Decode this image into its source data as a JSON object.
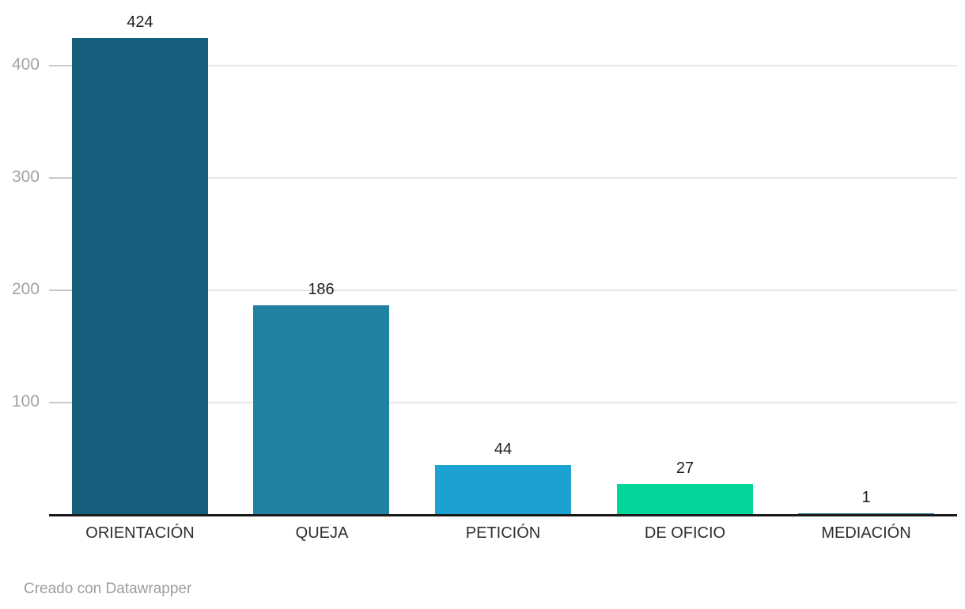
{
  "chart_data": {
    "type": "bar",
    "categories": [
      "ORIENTACIÓN",
      "QUEJA",
      "PETICIÓN",
      "DE OFICIO",
      "MEDIACIÓN"
    ],
    "values": [
      424,
      186,
      44,
      27,
      1
    ],
    "value_labels": [
      "424",
      "186",
      "44",
      "27",
      "1"
    ],
    "bar_colors": [
      "#16607E",
      "#2081A1",
      "#1BA2D1",
      "#04D69B",
      "#2081A1"
    ],
    "title": "",
    "xlabel": "",
    "ylabel": "",
    "ylim": [
      0,
      450
    ],
    "yticks": [
      100,
      200,
      300,
      400
    ],
    "grid": true,
    "legend": "none"
  },
  "footer": {
    "credit": "Creado con Datawrapper"
  },
  "colors": {
    "background": "#ffffff",
    "gridline": "#e6e6e6",
    "tickmark": "#c9c9c9",
    "axis_line": "#1a1a1a",
    "y_tick_label": "#a3a3a3",
    "value_label": "#1f1f1f",
    "category_label": "#2e2e2e",
    "credit": "#9d9d9d"
  }
}
